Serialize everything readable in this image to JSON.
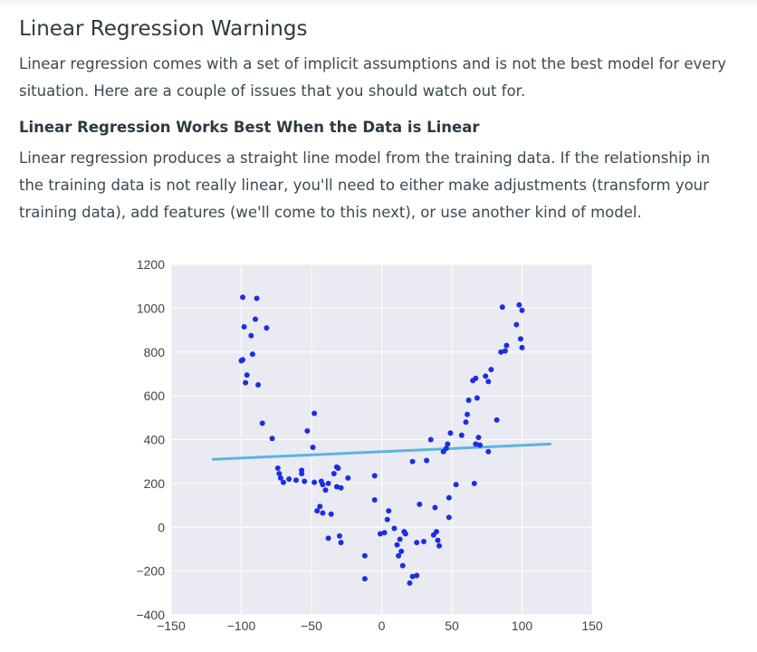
{
  "article": {
    "title": "Linear Regression Warnings",
    "intro": "Linear regression comes with a set of implicit assumptions and is not the best model for every situation. Here are a couple of issues that you should watch out for.",
    "section_heading": "Linear Regression Works Best When the Data is Linear",
    "section_body": "Linear regression produces a straight line model from the training data. If the relationship in the training data is not really linear, you'll need to either make adjustments (transform your training data), add features (we'll come to this next), or use another kind of model."
  },
  "colors": {
    "points": "#1d2ee0",
    "fit_line": "#5bb5dc",
    "plot_bg": "#eaeaf2",
    "grid": "#ffffff"
  },
  "chart_data": {
    "type": "scatter",
    "xlim": [
      -150,
      150
    ],
    "ylim": [
      -400,
      1200
    ],
    "x_ticks": [
      "−150",
      "−100",
      "−50",
      "0",
      "50",
      "100",
      "150"
    ],
    "y_ticks": [
      "1200",
      "1000",
      "800",
      "600",
      "400",
      "200",
      "0",
      "−200",
      "−400"
    ],
    "x_tick_values": [
      -150,
      -100,
      -50,
      0,
      50,
      100,
      150
    ],
    "y_tick_values": [
      1200,
      1000,
      800,
      600,
      400,
      200,
      0,
      -200,
      -400
    ],
    "grid": true,
    "fit_line": [
      [
        -120,
        310
      ],
      [
        120,
        380
      ]
    ],
    "points": [
      [
        -99,
        1050
      ],
      [
        -89,
        1045
      ],
      [
        -98,
        915
      ],
      [
        -90,
        950
      ],
      [
        -93,
        875
      ],
      [
        -82,
        910
      ],
      [
        -92,
        790
      ],
      [
        -100,
        760
      ],
      [
        -99,
        765
      ],
      [
        -96,
        695
      ],
      [
        -97,
        660
      ],
      [
        -88,
        650
      ],
      [
        -85,
        475
      ],
      [
        -78,
        405
      ],
      [
        -74,
        270
      ],
      [
        -73,
        245
      ],
      [
        -72,
        225
      ],
      [
        -70,
        205
      ],
      [
        -66,
        220
      ],
      [
        -61,
        215
      ],
      [
        -57,
        245
      ],
      [
        -57,
        260
      ],
      [
        -55,
        210
      ],
      [
        -53,
        440
      ],
      [
        -49,
        365
      ],
      [
        -48,
        520
      ],
      [
        -48,
        205
      ],
      [
        -43,
        210
      ],
      [
        -42,
        195
      ],
      [
        -40,
        170
      ],
      [
        -44,
        95
      ],
      [
        -46,
        75
      ],
      [
        -42,
        65
      ],
      [
        -36,
        60
      ],
      [
        -38,
        200
      ],
      [
        -34,
        245
      ],
      [
        -32,
        275
      ],
      [
        -31,
        270
      ],
      [
        -32,
        185
      ],
      [
        -29,
        180
      ],
      [
        -24,
        225
      ],
      [
        -38,
        -50
      ],
      [
        -30,
        -40
      ],
      [
        -29,
        -70
      ],
      [
        -12,
        -130
      ],
      [
        -12,
        -235
      ],
      [
        -5,
        235
      ],
      [
        -5,
        125
      ],
      [
        -1,
        -30
      ],
      [
        2,
        -25
      ],
      [
        4,
        35
      ],
      [
        5,
        75
      ],
      [
        9,
        -5
      ],
      [
        11,
        -80
      ],
      [
        13,
        -55
      ],
      [
        14,
        -110
      ],
      [
        12,
        -130
      ],
      [
        16,
        -20
      ],
      [
        17,
        -30
      ],
      [
        15,
        -175
      ],
      [
        20,
        -255
      ],
      [
        22,
        -225
      ],
      [
        25,
        -220
      ],
      [
        22,
        300
      ],
      [
        27,
        105
      ],
      [
        25,
        -70
      ],
      [
        30,
        -65
      ],
      [
        32,
        305
      ],
      [
        35,
        400
      ],
      [
        37,
        -35
      ],
      [
        38,
        90
      ],
      [
        39,
        -20
      ],
      [
        40,
        -60
      ],
      [
        41,
        -85
      ],
      [
        44,
        345
      ],
      [
        46,
        360
      ],
      [
        47,
        380
      ],
      [
        49,
        430
      ],
      [
        48,
        135
      ],
      [
        48,
        45
      ],
      [
        53,
        195
      ],
      [
        57,
        420
      ],
      [
        60,
        480
      ],
      [
        61,
        515
      ],
      [
        62,
        580
      ],
      [
        65,
        670
      ],
      [
        67,
        680
      ],
      [
        68,
        590
      ],
      [
        66,
        200
      ],
      [
        67,
        380
      ],
      [
        69,
        410
      ],
      [
        70,
        375
      ],
      [
        74,
        690
      ],
      [
        76,
        665
      ],
      [
        78,
        720
      ],
      [
        76,
        345
      ],
      [
        82,
        490
      ],
      [
        85,
        800
      ],
      [
        86,
        1005
      ],
      [
        88,
        805
      ],
      [
        89,
        830
      ],
      [
        96,
        925
      ],
      [
        98,
        1015
      ],
      [
        100,
        990
      ],
      [
        99,
        860
      ],
      [
        100,
        820
      ]
    ]
  }
}
